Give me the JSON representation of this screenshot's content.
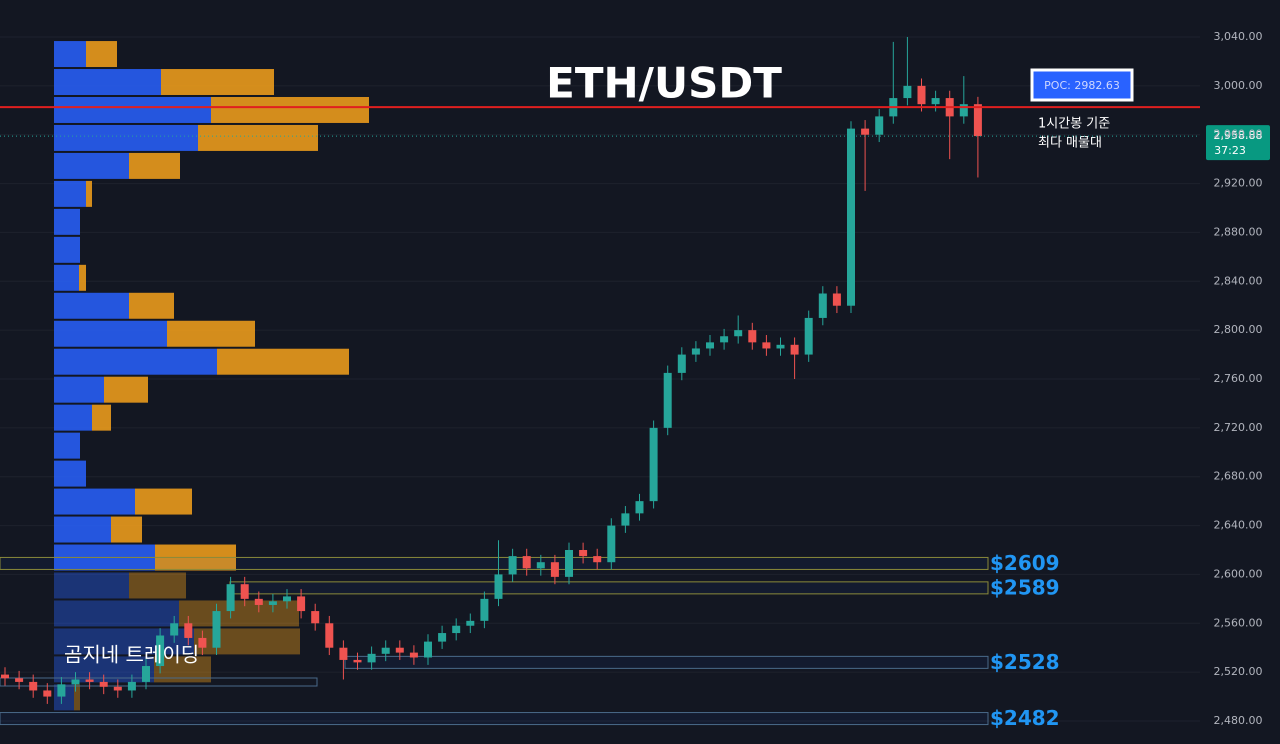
{
  "chart_data": {
    "type": "candlestick",
    "title": "ETH/USDT",
    "ylim": [
      2480,
      3040
    ],
    "yticks": [
      {
        "value": 2480,
        "label": "2,480.00"
      },
      {
        "value": 2520,
        "label": "2,520.00"
      },
      {
        "value": 2560,
        "label": "2,560.00"
      },
      {
        "value": 2600,
        "label": "2,600.00"
      },
      {
        "value": 2640,
        "label": "2,640.00"
      },
      {
        "value": 2680,
        "label": "2,680.00"
      },
      {
        "value": 2720,
        "label": "2,720.00"
      },
      {
        "value": 2760,
        "label": "2,760.00"
      },
      {
        "value": 2800,
        "label": "2,800.00"
      },
      {
        "value": 2840,
        "label": "2,840.00"
      },
      {
        "value": 2880,
        "label": "2,880.00"
      },
      {
        "value": 2920,
        "label": "2,920.00"
      },
      {
        "value": 2960,
        "label": "2,960.00"
      },
      {
        "value": 3000,
        "label": "3,000.00"
      },
      {
        "value": 3040,
        "label": "3,040.00"
      }
    ],
    "up_color": "#26a69a",
    "down_color": "#ef5350",
    "open": [
      2518,
      2515,
      2512,
      2505,
      2500,
      2510,
      2514,
      2512,
      2508,
      2505,
      2512,
      2525,
      2550,
      2560,
      2548,
      2540,
      2570,
      2592,
      2580,
      2575,
      2578,
      2582,
      2570,
      2560,
      2540,
      2530,
      2528,
      2535,
      2540,
      2536,
      2532,
      2545,
      2552,
      2558,
      2562,
      2580,
      2600,
      2615,
      2605,
      2610,
      2598,
      2620,
      2615,
      2610,
      2640,
      2650,
      2660,
      2720,
      2765,
      2780,
      2785,
      2790,
      2795,
      2800,
      2790,
      2785,
      2788,
      2780,
      2810,
      2830,
      2820,
      2965,
      2960,
      2975,
      2990,
      3000,
      2985,
      2990,
      2975,
      2985
    ],
    "high": [
      2524,
      2521,
      2518,
      2511,
      2516,
      2520,
      2520,
      2518,
      2514,
      2518,
      2531,
      2556,
      2566,
      2566,
      2554,
      2576,
      2598,
      2598,
      2586,
      2584,
      2588,
      2588,
      2576,
      2566,
      2546,
      2536,
      2541,
      2546,
      2546,
      2542,
      2551,
      2558,
      2564,
      2568,
      2586,
      2628,
      2621,
      2621,
      2616,
      2616,
      2626,
      2626,
      2621,
      2646,
      2656,
      2666,
      2726,
      2771,
      2786,
      2791,
      2796,
      2801,
      2812,
      2806,
      2796,
      2794,
      2794,
      2816,
      2836,
      2836,
      2971,
      2972,
      2981,
      3036,
      3040,
      3006,
      2996,
      2996,
      3008,
      2991
    ],
    "low": [
      2509,
      2506,
      2499,
      2494,
      2494,
      2504,
      2506,
      2502,
      2499,
      2499,
      2506,
      2519,
      2544,
      2542,
      2534,
      2534,
      2564,
      2574,
      2569,
      2569,
      2572,
      2564,
      2554,
      2534,
      2514,
      2522,
      2522,
      2529,
      2530,
      2526,
      2526,
      2539,
      2546,
      2552,
      2556,
      2574,
      2594,
      2599,
      2599,
      2592,
      2592,
      2609,
      2604,
      2604,
      2634,
      2644,
      2654,
      2714,
      2759,
      2774,
      2779,
      2784,
      2789,
      2784,
      2779,
      2779,
      2760,
      2774,
      2804,
      2814,
      2814,
      2914,
      2954,
      2969,
      2984,
      2979,
      2979,
      2940,
      2969,
      2925
    ],
    "close": [
      2515,
      2512,
      2505,
      2500,
      2510,
      2514,
      2512,
      2508,
      2505,
      2512,
      2525,
      2550,
      2560,
      2548,
      2540,
      2570,
      2592,
      2580,
      2575,
      2578,
      2582,
      2570,
      2560,
      2540,
      2530,
      2528,
      2535,
      2540,
      2536,
      2532,
      2545,
      2552,
      2558,
      2562,
      2580,
      2600,
      2615,
      2605,
      2610,
      2598,
      2620,
      2615,
      2610,
      2640,
      2650,
      2660,
      2720,
      2765,
      2780,
      2785,
      2790,
      2795,
      2800,
      2790,
      2785,
      2788,
      2780,
      2810,
      2830,
      2820,
      2965,
      2960,
      2975,
      2990,
      3000,
      2985,
      2990,
      2975,
      2985,
      2958.88
    ],
    "last_price": {
      "value": 2958.88,
      "label": "2,958.88",
      "timer": "37:23"
    },
    "poc": {
      "value": 2982.63,
      "label": "POC: 2982.63",
      "note": [
        "1시간봉 기준",
        "최다 매물대"
      ]
    },
    "levels": [
      {
        "value": 2609,
        "label": "$2609"
      },
      {
        "value": 2589,
        "label": "$2589"
      },
      {
        "value": 2528,
        "label": "$2528"
      },
      {
        "value": 2482,
        "label": "$2482"
      }
    ],
    "profile": {
      "bins": [
        3037.5,
        3014.6,
        2991.7,
        2968.8,
        2945.9,
        2923.0,
        2900.1,
        2877.2,
        2854.3,
        2831.4,
        2808.5,
        2785.6,
        2762.7,
        2739.8,
        2716.9,
        2694.0,
        2671.1,
        2648.2,
        2625.3,
        2602.4,
        2579.5,
        2556.6,
        2533.7,
        2510.8,
        2487.9
      ],
      "up": [
        32,
        107,
        157,
        144,
        75,
        32,
        26,
        26,
        25,
        75,
        113,
        163,
        50,
        38,
        26,
        32,
        81,
        57,
        101,
        75,
        125,
        140,
        100,
        20
      ],
      "down": [
        31,
        113,
        158,
        120,
        51,
        6,
        0,
        0,
        7,
        45,
        88,
        132,
        44,
        19,
        0,
        0,
        57,
        31,
        81,
        57,
        120,
        106,
        57,
        6
      ],
      "up_color": "#2962ff",
      "down_color": "#f7a21b"
    },
    "watermark": "곰지네 트레이딩"
  }
}
